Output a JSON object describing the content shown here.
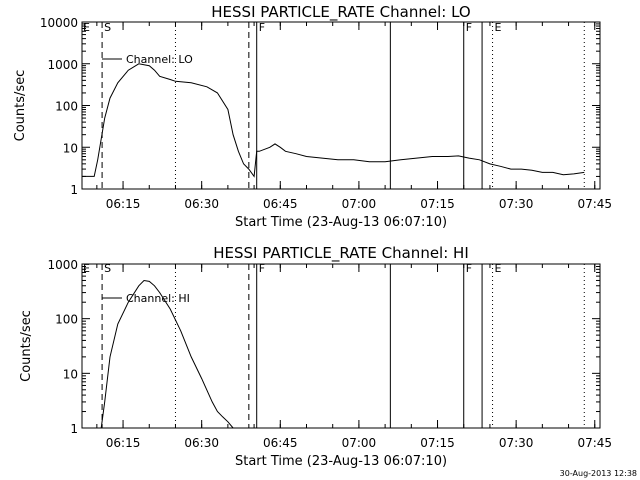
{
  "footer": {
    "timestamp": "30-Aug-2013 12:38"
  },
  "chart_data": [
    {
      "type": "line",
      "title": "HESSI PARTICLE_RATE Channel: LO",
      "xlabel": "Start Time (23-Aug-13 06:07:10)",
      "ylabel": "Counts/sec",
      "yscale": "log",
      "xlim": [
        "06:07:10",
        "07:46:00"
      ],
      "ylim": [
        1,
        10000
      ],
      "x_ticks": [
        "06:15",
        "06:30",
        "06:45",
        "07:00",
        "07:15",
        "07:30",
        "07:45"
      ],
      "y_ticks": [
        "1",
        "10",
        "100",
        "1000",
        "10000"
      ],
      "legend": {
        "entries": [
          "Channel: LO"
        ],
        "position": "top-left"
      },
      "series": [
        {
          "name": "Channel: LO",
          "x": [
            "06:07:10",
            "06:09:30",
            "06:10:10",
            "06:11:30",
            "06:12:30",
            "06:14:00",
            "06:16:00",
            "06:18:00",
            "06:20:00",
            "06:21:00",
            "06:22:00",
            "06:24:00",
            "06:25:00",
            "06:28:00",
            "06:31:00",
            "06:33:00",
            "06:35:00",
            "06:36:00",
            "06:37:00",
            "06:38:00",
            "06:39:00",
            "06:40:00",
            "06:40:30",
            "06:41:00",
            "06:43:00",
            "06:44:00",
            "06:45:00",
            "06:46:00",
            "06:48:00",
            "06:50:00",
            "06:53:00",
            "06:56:00",
            "06:59:00",
            "07:02:00",
            "07:05:00",
            "07:08:00",
            "07:11:00",
            "07:14:00",
            "07:17:00",
            "07:19:00",
            "07:21:00",
            "07:23:00",
            "07:25:00",
            "07:27:00",
            "07:29:00",
            "07:31:00",
            "07:33:00",
            "07:35:00",
            "07:37:00",
            "07:39:00",
            "07:41:00",
            "07:43:00"
          ],
          "y": [
            2,
            2,
            5,
            50,
            150,
            350,
            700,
            1000,
            900,
            700,
            500,
            420,
            380,
            350,
            280,
            200,
            80,
            20,
            8,
            4,
            3,
            2,
            8,
            8,
            10,
            12,
            10,
            8,
            7,
            6,
            5.5,
            5,
            5,
            4.5,
            4.5,
            5,
            5.5,
            6,
            6,
            6.2,
            5.5,
            5,
            4,
            3.5,
            3,
            3,
            2.8,
            2.5,
            2.5,
            2.2,
            2.3,
            2.5
          ]
        }
      ],
      "markers": [
        {
          "label": "S",
          "x": "06:11:00",
          "style": "dashed"
        },
        {
          "label": "",
          "x": "06:39:00",
          "style": "dashed"
        },
        {
          "label": "",
          "x": "06:25:00",
          "style": "dotted"
        },
        {
          "label": "F",
          "x": "06:40:30",
          "style": "solid"
        },
        {
          "label": "",
          "x": "07:06:00",
          "style": "solid"
        },
        {
          "label": "F",
          "x": "07:20:00",
          "style": "solid"
        },
        {
          "label": "",
          "x": "07:23:30",
          "style": "solid"
        },
        {
          "label": "E",
          "x": "07:25:30",
          "style": "dotted"
        },
        {
          "label": "",
          "x": "07:43:00",
          "style": "dotted"
        }
      ],
      "corner_labels": [
        "E"
      ]
    },
    {
      "type": "line",
      "title": "HESSI PARTICLE_RATE Channel: HI",
      "xlabel": "Start Time (23-Aug-13 06:07:10)",
      "ylabel": "Counts/sec",
      "yscale": "log",
      "xlim": [
        "06:07:10",
        "07:46:00"
      ],
      "ylim": [
        1,
        1000
      ],
      "x_ticks": [
        "06:15",
        "06:30",
        "06:45",
        "07:00",
        "07:15",
        "07:30",
        "07:45"
      ],
      "y_ticks": [
        "1",
        "10",
        "100",
        "1000"
      ],
      "legend": {
        "entries": [
          "Channel: HI"
        ],
        "position": "top-left"
      },
      "series": [
        {
          "name": "Channel: HI",
          "x": [
            "06:10:50",
            "06:11:30",
            "06:12:30",
            "06:14:00",
            "06:16:00",
            "06:18:00",
            "06:19:00",
            "06:20:00",
            "06:21:00",
            "06:22:00",
            "06:24:00",
            "06:26:00",
            "06:28:00",
            "06:30:00",
            "06:32:00",
            "06:33:00",
            "06:34:00",
            "06:35:00",
            "06:36:00"
          ],
          "y": [
            1,
            3,
            20,
            80,
            200,
            400,
            500,
            480,
            400,
            300,
            150,
            60,
            20,
            8,
            3,
            2,
            1.6,
            1.3,
            1
          ]
        }
      ],
      "markers": [
        {
          "label": "S",
          "x": "06:11:00",
          "style": "dashed"
        },
        {
          "label": "",
          "x": "06:39:00",
          "style": "dashed"
        },
        {
          "label": "",
          "x": "06:25:00",
          "style": "dotted"
        },
        {
          "label": "F",
          "x": "06:40:30",
          "style": "solid"
        },
        {
          "label": "",
          "x": "07:06:00",
          "style": "solid"
        },
        {
          "label": "F",
          "x": "07:20:00",
          "style": "solid"
        },
        {
          "label": "",
          "x": "07:23:30",
          "style": "solid"
        },
        {
          "label": "E",
          "x": "07:25:30",
          "style": "dotted"
        },
        {
          "label": "",
          "x": "07:43:00",
          "style": "dotted"
        }
      ],
      "corner_labels": [
        "E"
      ]
    }
  ]
}
